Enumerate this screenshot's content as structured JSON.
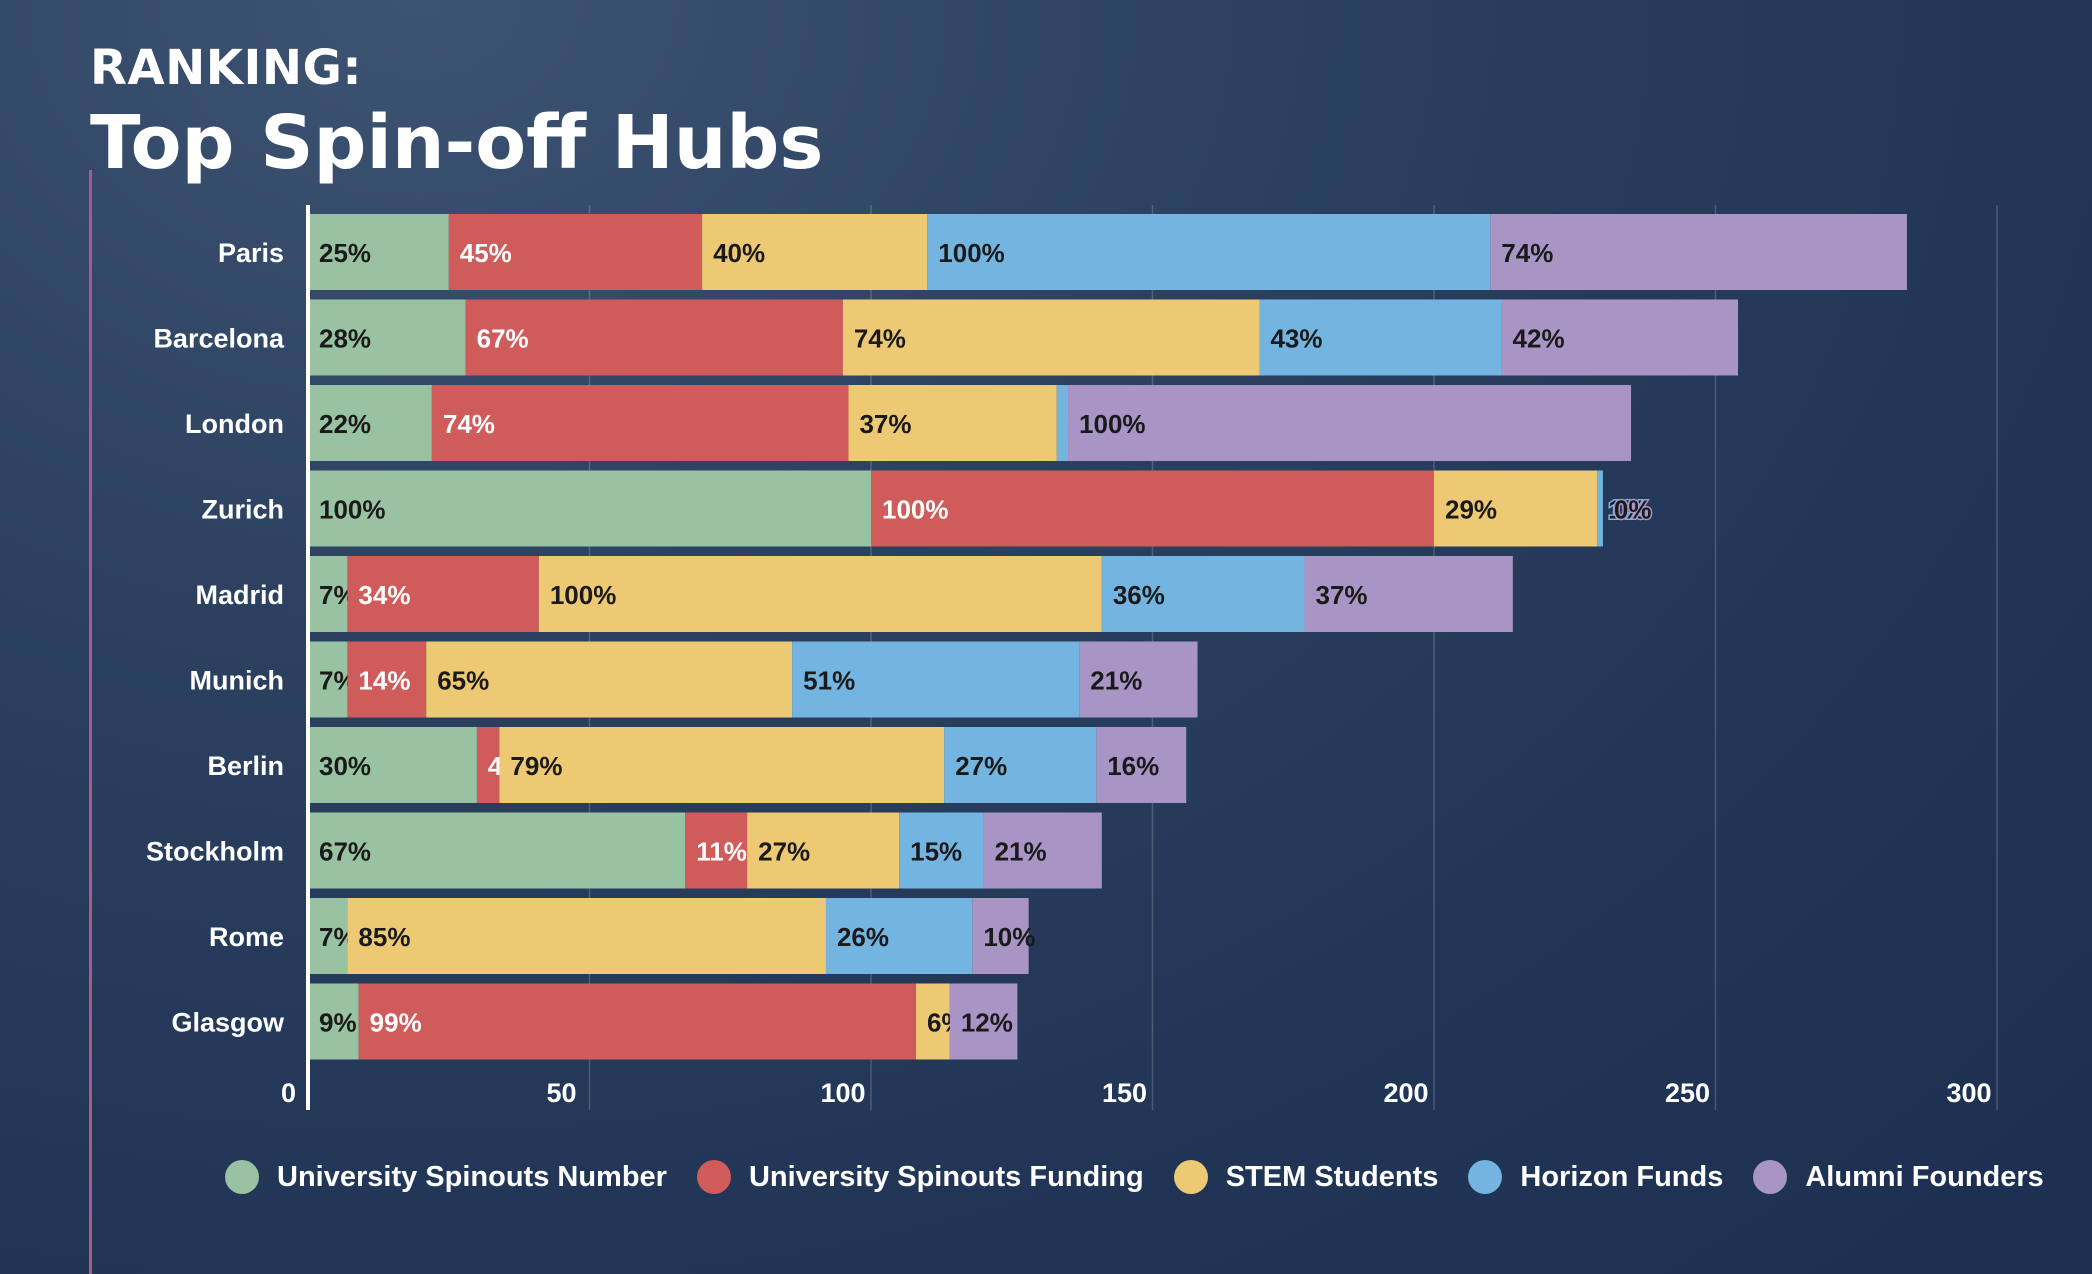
{
  "header": {
    "kicker": "RANKING:",
    "title": "Top Spin-off Hubs"
  },
  "chart_data": {
    "type": "bar",
    "orientation": "horizontal",
    "stacked": true,
    "xlim": [
      0,
      300
    ],
    "xticks": [
      0,
      50,
      100,
      150,
      200,
      250,
      300
    ],
    "grid": true,
    "legend_position": "bottom",
    "categories": [
      "Paris",
      "Barcelona",
      "London",
      "Zurich",
      "Madrid",
      "Munich",
      "Berlin",
      "Stockholm",
      "Rome",
      "Glasgow"
    ],
    "series": [
      {
        "name": "University Spinouts Number",
        "color": "#99c2a3",
        "values": [
          25,
          28,
          22,
          100,
          7,
          7,
          30,
          67,
          7,
          9
        ],
        "labels": [
          "25%",
          "28%",
          "22%",
          "100%",
          "7%",
          "7%",
          "30%",
          "67%",
          "7%",
          "9%"
        ]
      },
      {
        "name": "University Spinouts Funding",
        "color": "#d05b5b",
        "values": [
          45,
          67,
          74,
          100,
          34,
          14,
          4,
          11,
          0,
          99
        ],
        "labels": [
          "45%",
          "67%",
          "74%",
          "100%",
          "34%",
          "14%",
          "4%",
          "11%",
          "0%",
          "99%"
        ]
      },
      {
        "name": "STEM Students",
        "color": "#edc973",
        "values": [
          40,
          74,
          37,
          29,
          100,
          65,
          79,
          27,
          85,
          6
        ],
        "labels": [
          "40%",
          "74%",
          "37%",
          "29%",
          "100%",
          "65%",
          "79%",
          "27%",
          "85%",
          "6%"
        ]
      },
      {
        "name": "Horizon Funds",
        "color": "#73b4e0",
        "values": [
          100,
          43,
          2,
          1,
          36,
          51,
          27,
          15,
          26,
          0
        ],
        "labels": [
          "100%",
          "43%",
          "2%",
          "1%",
          "36%",
          "51%",
          "27%",
          "15%",
          "26%",
          "0%"
        ]
      },
      {
        "name": "Alumni Founders",
        "color": "#a994c6",
        "values": [
          74,
          42,
          100,
          0,
          37,
          21,
          16,
          21,
          10,
          12
        ],
        "labels": [
          "74%",
          "42%",
          "100%",
          "0%",
          "37%",
          "21%",
          "16%",
          "21%",
          "10%",
          "12%"
        ]
      }
    ]
  }
}
